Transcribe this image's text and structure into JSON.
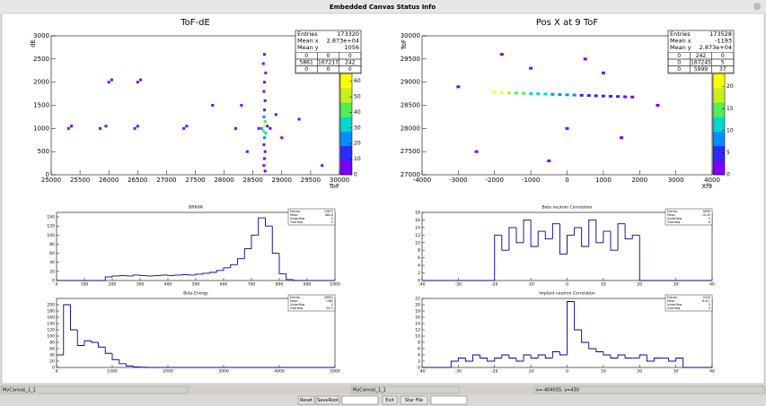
{
  "window_title": "Embedded Canvas Status Info",
  "chart_data": [
    {
      "type": "scatter",
      "title": "ToF-dE",
      "x_label": "ToF",
      "y_label": "dE",
      "xlim": [
        25000,
        30000
      ],
      "xticks": [
        25000,
        25500,
        26000,
        26500,
        27000,
        27500,
        28000,
        28500,
        29000,
        29500,
        30000
      ],
      "ylim": [
        0,
        3000
      ],
      "yticks": [
        0,
        500,
        1000,
        1500,
        2000,
        2500,
        3000
      ],
      "x": [
        28700,
        28680,
        28720,
        28700,
        28690,
        28710,
        28700,
        28690,
        28710,
        28700,
        28680,
        28720,
        28700,
        28690,
        28710,
        28700,
        28690,
        28710,
        28650,
        28750,
        28600,
        28800,
        25300,
        25350,
        25850,
        25950,
        26450,
        26500,
        27300,
        27350,
        26000,
        26050,
        26500,
        26550,
        28200,
        28300,
        29000,
        29300,
        29700,
        27800,
        28400,
        28900
      ],
      "y": [
        2600,
        2400,
        2200,
        2000,
        1800,
        1600,
        1400,
        1250,
        1150,
        1050,
        950,
        900,
        800,
        650,
        500,
        350,
        200,
        80,
        1000,
        1050,
        1000,
        1000,
        1000,
        1050,
        1000,
        1050,
        1000,
        1050,
        1000,
        1050,
        2000,
        2050,
        2000,
        2050,
        1000,
        1500,
        800,
        1200,
        200,
        1500,
        500,
        1300
      ],
      "z": [
        1,
        2,
        3,
        5,
        8,
        10,
        15,
        25,
        40,
        60,
        45,
        30,
        20,
        12,
        8,
        5,
        3,
        2,
        20,
        15,
        5,
        4,
        1,
        1,
        1,
        1,
        1,
        1,
        1,
        1,
        1,
        1,
        1,
        1,
        1,
        1,
        1,
        1,
        1,
        1,
        1,
        1
      ],
      "zlim": [
        0,
        65
      ],
      "zticks": [
        0,
        10,
        20,
        30,
        40,
        50,
        60
      ],
      "palette": [
        "#7a00ff",
        "#2a2aff",
        "#0090ff",
        "#00d8d0",
        "#50f050",
        "#c8f020",
        "#ffff00"
      ],
      "stats": [
        {
          "label": "Entries",
          "value": 173320
        },
        {
          "label": "Mean x",
          "value": "2.873e+04"
        },
        {
          "label": "Mean y",
          "value": 1056
        }
      ],
      "overflow_table": [
        [
          0,
          0,
          0
        ],
        [
          5861,
          167217,
          242
        ],
        [
          0,
          0,
          0
        ]
      ]
    },
    {
      "type": "scatter",
      "title": "Pos X at 9 ToF",
      "x_label": "Xf9",
      "y_label": "ToF",
      "xlim": [
        -4000,
        4000
      ],
      "xticks": [
        -4000,
        -3000,
        -2000,
        -1000,
        0,
        1000,
        2000,
        3000,
        4000
      ],
      "ylim": [
        27000,
        30000
      ],
      "yticks": [
        27000,
        27500,
        28000,
        28500,
        29000,
        29500,
        30000
      ],
      "x": [
        -2000,
        -1800,
        -1600,
        -1400,
        -1200,
        -1000,
        -800,
        -600,
        -400,
        -200,
        0,
        200,
        400,
        600,
        800,
        1000,
        1200,
        1400,
        1600,
        1800,
        -1000,
        500,
        -2500,
        1500,
        0,
        -3000,
        2500,
        -1800,
        1000,
        -500
      ],
      "y": [
        28780,
        28775,
        28769,
        28764,
        28759,
        28753,
        28748,
        28743,
        28737,
        28732,
        28727,
        28722,
        28716,
        28711,
        28706,
        28700,
        28695,
        28690,
        28684,
        28679,
        29300,
        29500,
        27500,
        27800,
        28000,
        28900,
        28500,
        29600,
        29200,
        27300
      ],
      "z": [
        22,
        20,
        18,
        15,
        14,
        12,
        11,
        10,
        9,
        8,
        8,
        7,
        6,
        6,
        5,
        5,
        4,
        4,
        3,
        3,
        1,
        1,
        1,
        1,
        1,
        1,
        1,
        1,
        1,
        1
      ],
      "zlim": [
        0,
        23
      ],
      "zticks": [
        0,
        5,
        10,
        15,
        20
      ],
      "palette": [
        "#7a00ff",
        "#2a2aff",
        "#0090ff",
        "#00d8d0",
        "#50f050",
        "#c8f020",
        "#ffff00"
      ],
      "stats": [
        {
          "label": "Entries",
          "value": 173528
        },
        {
          "label": "Mean x",
          "value": -1193
        },
        {
          "label": "Mean y",
          "value": "2.873e+04"
        }
      ],
      "overflow_table": [
        [
          0,
          242,
          0
        ],
        [
          0,
          167245,
          5
        ],
        [
          0,
          5999,
          37
        ]
      ]
    },
    {
      "type": "histogram",
      "title": "BRK0N",
      "color": "#0000a0",
      "bins": [
        0,
        25,
        50,
        75,
        100,
        125,
        150,
        175,
        200,
        225,
        250,
        275,
        300,
        325,
        350,
        375,
        400,
        425,
        450,
        475,
        500,
        525,
        550,
        575,
        600,
        625,
        650,
        675,
        700,
        725,
        750,
        775,
        800,
        825,
        850,
        875,
        900,
        925,
        950,
        975,
        1000
      ],
      "values": [
        0,
        0,
        0,
        0,
        0,
        0,
        0,
        8,
        10,
        11,
        10,
        12,
        11,
        10,
        11,
        12,
        11,
        12,
        13,
        12,
        14,
        16,
        18,
        22,
        28,
        35,
        48,
        70,
        100,
        138,
        120,
        60,
        15,
        2,
        0,
        0,
        0,
        0,
        0,
        0
      ],
      "xlim": [
        0,
        1000
      ],
      "xticks": [
        0,
        100,
        200,
        300,
        400,
        500,
        600,
        700,
        800,
        900,
        1000
      ],
      "ylim": [
        0,
        150
      ],
      "yticks": [
        0,
        20,
        40,
        60,
        80,
        100,
        120,
        140
      ],
      "stats": [
        {
          "label": "Entries",
          "value": 15873
        },
        {
          "label": "Mean",
          "value": 684.6
        },
        {
          "label": "Underflow",
          "value": 0
        },
        {
          "label": "Overflow",
          "value": 0
        }
      ]
    },
    {
      "type": "histogram",
      "title": "Beta neutron Correlation",
      "color": "#0000a0",
      "bins": [
        -40,
        -38,
        -36,
        -34,
        -32,
        -30,
        -28,
        -26,
        -24,
        -22,
        -20,
        -18,
        -16,
        -14,
        -12,
        -10,
        -8,
        -6,
        -4,
        -2,
        0,
        2,
        4,
        6,
        8,
        10,
        12,
        14,
        16,
        18,
        20,
        22,
        24,
        26,
        28,
        30,
        32,
        34,
        36,
        38,
        40
      ],
      "values": [
        0,
        0,
        0,
        0,
        0,
        0,
        0,
        0,
        0,
        0,
        12,
        8,
        14,
        10,
        16,
        9,
        13,
        11,
        15,
        7,
        12,
        14,
        9,
        16,
        10,
        13,
        8,
        15,
        11,
        12,
        0,
        0,
        0,
        0,
        0,
        0,
        0,
        0,
        0,
        0
      ],
      "xlim": [
        -40,
        40
      ],
      "xticks": [
        -40,
        -30,
        -20,
        -10,
        0,
        10,
        20,
        30,
        40
      ],
      "ylim": [
        0,
        18
      ],
      "yticks": [
        0,
        2,
        4,
        6,
        8,
        10,
        12,
        14,
        16,
        18
      ],
      "stats": [
        {
          "label": "Entries",
          "value": 6999
        },
        {
          "label": "Mean",
          "value": 10.43
        },
        {
          "label": "Underflow",
          "value": 0
        },
        {
          "label": "Overflow",
          "value": 6
        }
      ]
    },
    {
      "type": "histogram",
      "title": "Beta Energy",
      "color": "#0000a0",
      "bins": [
        0,
        125,
        250,
        375,
        500,
        625,
        750,
        875,
        1000,
        1125,
        1250,
        1375,
        1500,
        1625,
        1750,
        1875,
        2000,
        2125,
        2250,
        2375,
        2500,
        2625,
        2750,
        2875,
        3000,
        3125,
        3250,
        3375,
        3500,
        3625,
        3750,
        3875,
        4000,
        4125,
        4250,
        4375,
        4500,
        4625,
        4750,
        4875,
        5000
      ],
      "values": [
        40,
        200,
        120,
        70,
        85,
        80,
        65,
        45,
        25,
        12,
        5,
        2,
        1,
        0,
        0,
        0,
        0,
        0,
        0,
        0,
        0,
        0,
        0,
        0,
        0,
        0,
        0,
        0,
        0,
        0,
        0,
        0,
        0,
        0,
        0,
        0,
        0,
        0,
        0,
        0
      ],
      "xlim": [
        0,
        5000
      ],
      "xticks": [
        0,
        1000,
        2000,
        3000,
        4000,
        5000
      ],
      "ylim": [
        0,
        220
      ],
      "yticks": [
        0,
        20,
        40,
        60,
        80,
        100,
        120,
        140,
        160,
        180,
        200
      ],
      "stats": [
        {
          "label": "Entries",
          "value": 26951
        },
        {
          "label": "Mean",
          "value": 1380
        },
        {
          "label": "Underflow",
          "value": 0
        },
        {
          "label": "Overflow",
          "value": 3571
        }
      ]
    },
    {
      "type": "histogram",
      "title": "Implant neutron Correlation",
      "color": "#0000a0",
      "bins": [
        -40,
        -38,
        -36,
        -34,
        -32,
        -30,
        -28,
        -26,
        -24,
        -22,
        -20,
        -18,
        -16,
        -14,
        -12,
        -10,
        -8,
        -6,
        -4,
        -2,
        0,
        2,
        4,
        6,
        8,
        10,
        12,
        14,
        16,
        18,
        20,
        22,
        24,
        26,
        28,
        30,
        32,
        34,
        36,
        38,
        40
      ],
      "values": [
        0,
        0,
        0,
        0,
        2,
        3,
        2,
        4,
        3,
        2,
        3,
        4,
        3,
        2,
        4,
        3,
        4,
        3,
        5,
        4,
        21,
        12,
        8,
        6,
        5,
        4,
        3,
        4,
        3,
        3,
        4,
        2,
        3,
        3,
        2,
        3,
        0,
        0,
        0,
        0
      ],
      "xlim": [
        -40,
        40
      ],
      "xticks": [
        -40,
        -30,
        -20,
        -10,
        0,
        10,
        20,
        30,
        40
      ],
      "ylim": [
        0,
        22
      ],
      "yticks": [
        0,
        2,
        4,
        6,
        8,
        10,
        12,
        14,
        16,
        18,
        20,
        22
      ],
      "stats": [
        {
          "label": "Entries",
          "value": 2445
        },
        {
          "label": "Mean",
          "value": 8.417
        },
        {
          "label": "Underflow",
          "value": 0
        },
        {
          "label": "Overflow",
          "value": 5
        }
      ]
    }
  ],
  "status_bar": [
    "MyCanvas_1_1",
    "MyCanvas_1_1",
    "x=-404035, y=430"
  ],
  "buttons": [
    "Reset",
    "SaveRoot",
    "Exit",
    "Star File"
  ]
}
